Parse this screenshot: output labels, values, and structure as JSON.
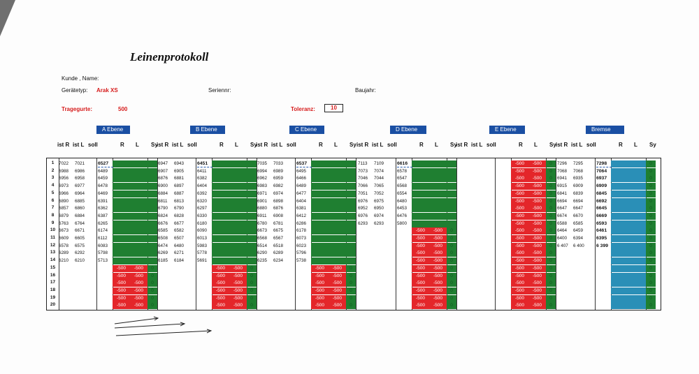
{
  "title": "Leinenprotokoll",
  "labels": {
    "kunde": "Kunde , Name:",
    "geraetetyp": "Gerätetyp:",
    "geraetetyp_value": "Arak XS",
    "seriennr": "Seriennr:",
    "baujahr": "Baujahr:",
    "tragegurte": "Tragegurte:",
    "tragegurte_value": "500",
    "toleranz": "Toleranz:",
    "toleranz_value": "10"
  },
  "sections": [
    {
      "name": "A Ebene"
    },
    {
      "name": "B Ebene"
    },
    {
      "name": "C Ebene"
    },
    {
      "name": "D Ebene"
    },
    {
      "name": "E Ebene"
    },
    {
      "name": "Bremse"
    }
  ],
  "column_headers": [
    "ist R",
    "ist L",
    "soll",
    "R",
    "L",
    "Sy"
  ],
  "row_numbers": [
    "1",
    "2",
    "3",
    "4",
    "5",
    "6",
    "7",
    "8",
    "9",
    "10",
    "11",
    "12",
    "13",
    "14",
    "15",
    "16",
    "17",
    "18",
    "19",
    "20"
  ],
  "data": {
    "A": {
      "istR": [
        "7022",
        "6988",
        "6956",
        "6973",
        "6966",
        "6890",
        "6857",
        "6879",
        "6763",
        "6673",
        "6609",
        "6578",
        "6289",
        "6210"
      ],
      "istL": [
        "7021",
        "6986",
        "6958",
        "6977",
        "6964",
        "6885",
        "6860",
        "6884",
        "6764",
        "6671",
        "6605",
        "6575",
        "6292",
        "6210"
      ],
      "soll": [
        "6527",
        "6489",
        "6459",
        "6478",
        "6469",
        "6391",
        "6362",
        "6387",
        "6265",
        "6174",
        "6112",
        "6083",
        "5798",
        "5713"
      ]
    },
    "B": {
      "istR": [
        "6947",
        "6907",
        "6876",
        "6900",
        "6884",
        "6811",
        "6790",
        "6824",
        "6676",
        "6585",
        "6508",
        "6474",
        "6269",
        "6185"
      ],
      "istL": [
        "6943",
        "6905",
        "6881",
        "6897",
        "6887",
        "6813",
        "6790",
        "6828",
        "6677",
        "6582",
        "6507",
        "6480",
        "6271",
        "6184"
      ],
      "soll": [
        "6451",
        "6411",
        "6382",
        "6404",
        "6392",
        "6320",
        "6297",
        "6330",
        "6180",
        "6090",
        "6013",
        "5983",
        "5778",
        "5691"
      ]
    },
    "C": {
      "istR": [
        "7035",
        "6994",
        "6962",
        "6983",
        "6971",
        "6901",
        "6880",
        "6911",
        "6780",
        "6673",
        "6568",
        "6514",
        "6290",
        "6235"
      ],
      "istL": [
        "7033",
        "6989",
        "6959",
        "6982",
        "6974",
        "6898",
        "6876",
        "6908",
        "6781",
        "6675",
        "6567",
        "6518",
        "6289",
        "6234"
      ],
      "soll": [
        "6537",
        "6495",
        "6466",
        "6489",
        "6477",
        "6404",
        "6381",
        "6412",
        "6286",
        "6178",
        "6073",
        "6023",
        "5796",
        "5738"
      ]
    },
    "D": {
      "istR": [
        "7113",
        "7073",
        "7046",
        "7066",
        "7051",
        "6976",
        "6952",
        "6976",
        "6293"
      ],
      "istL": [
        "7109",
        "7074",
        "7044",
        "7065",
        "7052",
        "6975",
        "6950",
        "6974",
        "6293"
      ],
      "soll": [
        "6616",
        "6578",
        "6547",
        "6568",
        "6554",
        "6480",
        "6453",
        "6476",
        "5800"
      ]
    },
    "Bremse": {
      "istR": [
        "7296",
        "7068",
        "6941",
        "6915",
        "6841",
        "6694",
        "6647",
        "6674",
        "6588",
        "6464",
        "6400",
        "6 407"
      ],
      "istL": [
        "7295",
        "7068",
        "6935",
        "6909",
        "6839",
        "6694",
        "6647",
        "6670",
        "6585",
        "6459",
        "6394",
        "6 400"
      ],
      "soll": [
        "7298",
        "7064",
        "6937",
        "6909",
        "6845",
        "6692",
        "6645",
        "6669",
        "6593",
        "6461",
        "6395",
        "6 399"
      ]
    },
    "minus500": "-500",
    "zero": "0"
  },
  "colors": {
    "green": "#1f7f31",
    "red": "#e4262a",
    "blue": "#2a8fb7",
    "section_header": "#1a4fa3"
  }
}
